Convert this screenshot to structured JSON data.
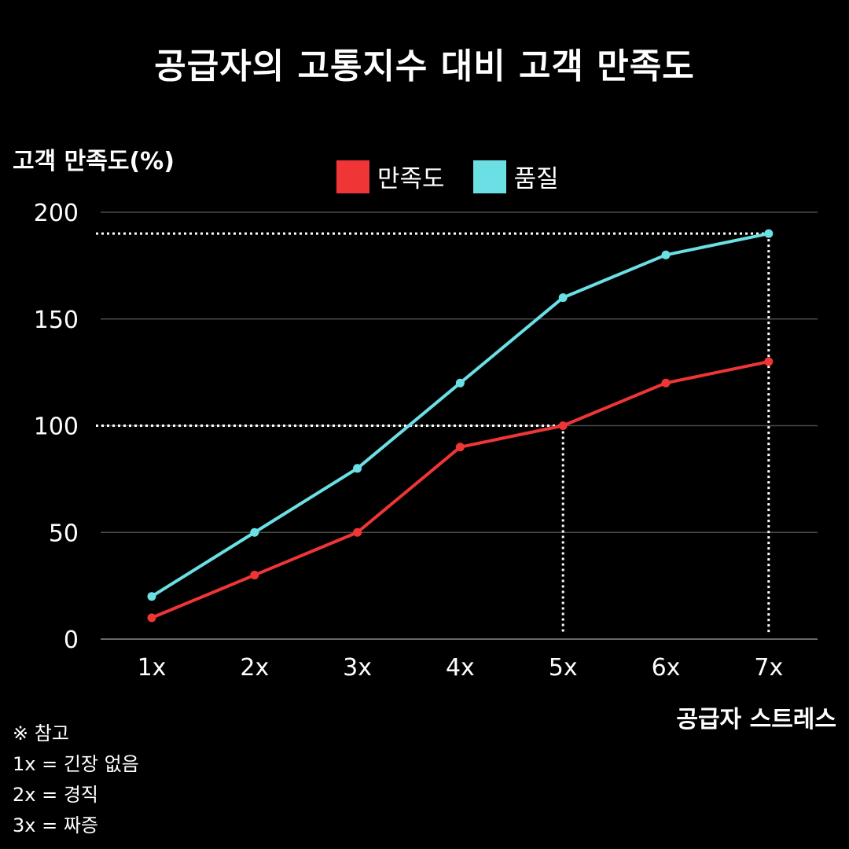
{
  "chart_data": {
    "type": "line",
    "title": "공급자의 고통지수 대비 고객 만족도",
    "ylabel": "고객 만족도(%)",
    "xlabel": "공급자 스트레스",
    "categories": [
      "1x",
      "2x",
      "3x",
      "4x",
      "5x",
      "6x",
      "7x"
    ],
    "ylim": [
      0,
      200
    ],
    "yticks": [
      "0",
      "50",
      "100",
      "150",
      "200"
    ],
    "grid": true,
    "legend_position": "top",
    "series": [
      {
        "name": "만족도",
        "color": "#ef3535",
        "values": [
          10,
          30,
          50,
          90,
          100,
          120,
          130
        ]
      },
      {
        "name": "품질",
        "color": "#6be0e4",
        "values": [
          20,
          50,
          80,
          120,
          160,
          180,
          190
        ]
      }
    ],
    "reference_lines": [
      {
        "y": 100,
        "x_index": 4
      },
      {
        "y": 190,
        "x_index": 6
      }
    ]
  },
  "notes": {
    "heading": "※ 참고",
    "lines": [
      "1x = 긴장 없음",
      "2x = 경직",
      "3x = 짜증"
    ]
  }
}
